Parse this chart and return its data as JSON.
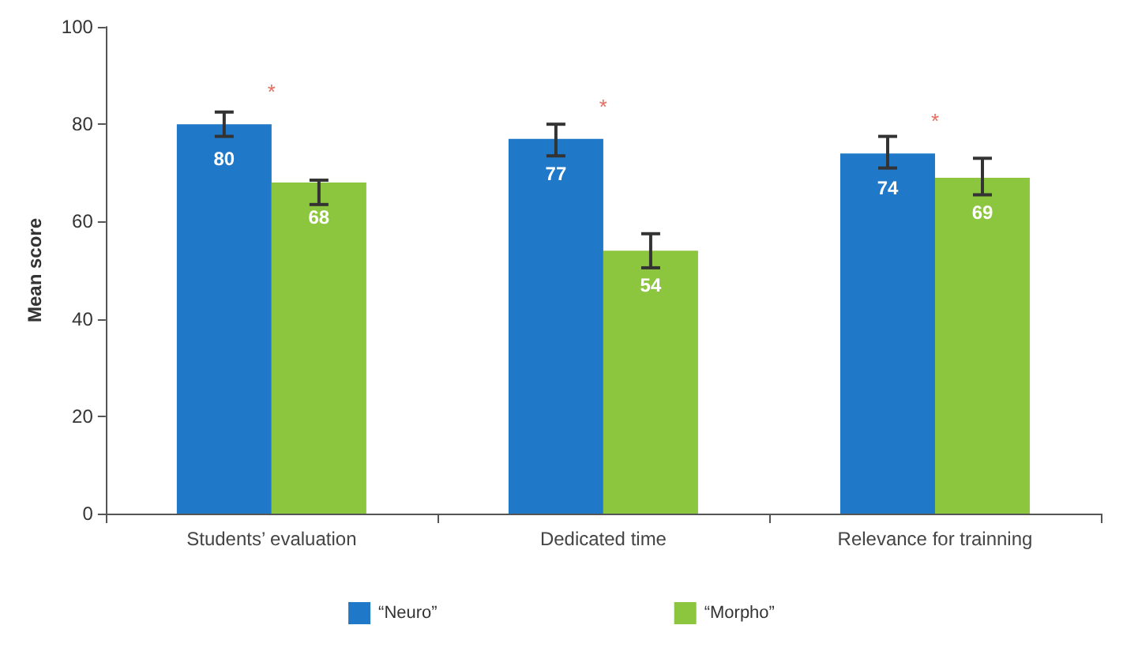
{
  "chart_data": {
    "type": "bar",
    "ylabel": "Mean score",
    "categories": [
      "Students’ evaluation",
      "Dedicated time",
      "Relevance for trainning"
    ],
    "series": [
      {
        "name": "“Neuro”",
        "color": "#1f78c8",
        "values": [
          80,
          77,
          74
        ],
        "errors": [
          [
            77.5,
            82.5
          ],
          [
            73.5,
            80
          ],
          [
            71,
            77.5
          ]
        ]
      },
      {
        "name": "“Morpho”",
        "color": "#8cc63f",
        "values": [
          68,
          54,
          69
        ],
        "errors": [
          [
            63.5,
            68.5
          ],
          [
            50.5,
            57.5
          ],
          [
            65.5,
            73
          ]
        ]
      }
    ],
    "ylim": [
      0,
      100
    ],
    "yticks": [
      0,
      20,
      40,
      60,
      80,
      100
    ],
    "grid": false,
    "legend": "bottom",
    "data_labels": true,
    "annotations": [
      "*",
      "*",
      "*"
    ]
  }
}
